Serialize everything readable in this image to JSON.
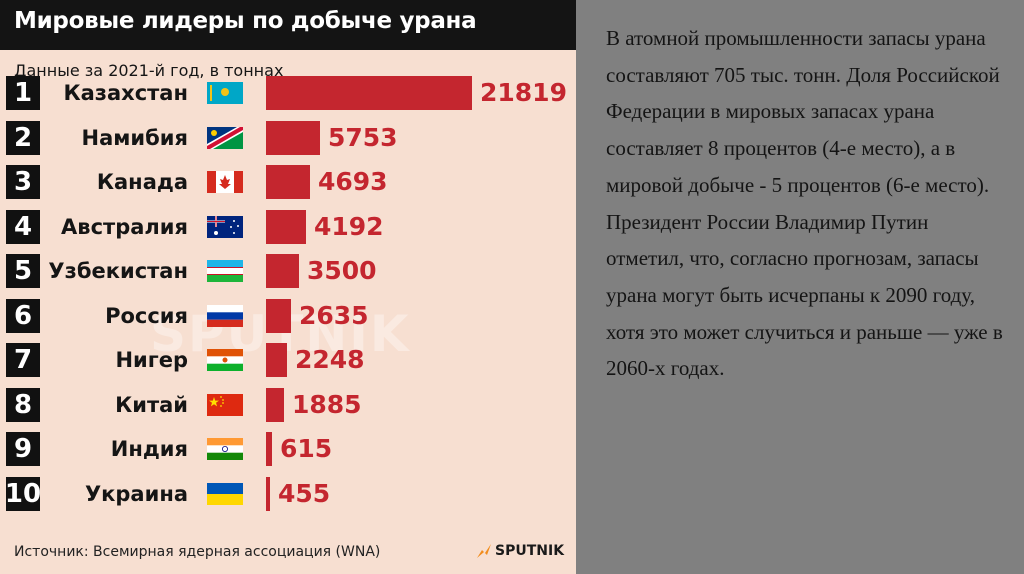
{
  "infographic": {
    "title": "Мировые лидеры по добыче урана",
    "subtitle": "Данные за 2021-й год, в тоннах",
    "watermark": "SPUTNIK",
    "source": "Источник: Всемирная ядерная ассоциация (WNA)",
    "logo": "SPUTNIK",
    "colors": {
      "bar": "#c4262f",
      "header": "#141414",
      "background": "#f7dfd1"
    }
  },
  "chart_data": {
    "type": "bar",
    "orientation": "horizontal",
    "title": "Мировые лидеры по добыче урана",
    "subtitle": "Данные за 2021-й год, в тоннах",
    "ranks": [
      "1",
      "2",
      "3",
      "4",
      "5",
      "6",
      "7",
      "8",
      "9",
      "10"
    ],
    "categories": [
      "Казахстан",
      "Намибия",
      "Канада",
      "Австралия",
      "Узбекистан",
      "Россия",
      "Нигер",
      "Китай",
      "Индия",
      "Украина"
    ],
    "flags": [
      "kz-flag",
      "na-flag",
      "ca-flag",
      "au-flag",
      "uz-flag",
      "ru-flag",
      "ne-flag",
      "cn-flag",
      "in-flag",
      "ua-flag"
    ],
    "values": [
      21819,
      5753,
      4693,
      4192,
      3500,
      2635,
      2248,
      1885,
      615,
      455
    ],
    "value_labels": [
      "21819",
      "5753",
      "4693",
      "4192",
      "3500",
      "2635",
      "2248",
      "1885",
      "615",
      "455"
    ],
    "xlim": [
      0,
      21819
    ],
    "grid": false
  },
  "side": {
    "paragraph": "В атомной промышленности запасы урана составляют 705 тыс. тонн. Доля Российской Федерации в мировых запасах урана составляет 8 процентов  (4-е место), а в мировой добыче - 5 процентов (6-е место). Президент России Владимир Путин отметил, что, согласно прогнозам, запасы урана могут быть исчерпаны к 2090 году, хотя это может случиться и раньше — уже в 2060-х годах."
  }
}
